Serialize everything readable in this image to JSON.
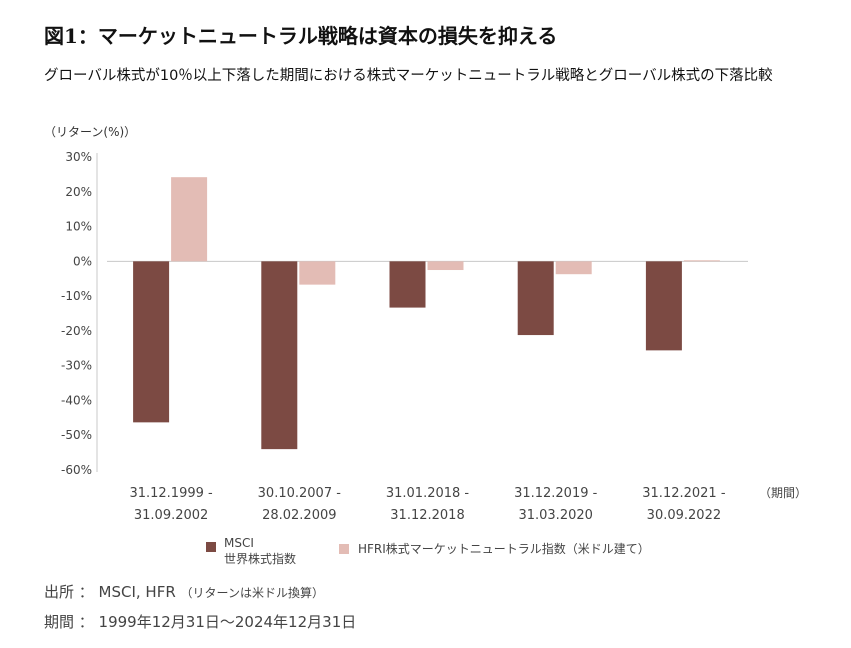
{
  "title": "図1：マーケットニュートラル戦略は資本の損失を抑える",
  "subtitle": "グローバル株式が10％以上下落した期間における株式マーケットニュートラル戦略とグローバル株式の下落比較",
  "colors": {
    "msci": "#7c4a43",
    "hfri": "#e3bcb5",
    "axis": "#c8c8c8",
    "text": "#444444"
  },
  "footer": {
    "source": "出所 ： MSCI, HFR",
    "source_note": "（リターンは米ドル換算）",
    "period": "期間 ： 1999年12月31日～2024年12月31日"
  },
  "chart_data": {
    "type": "bar",
    "ylabel": "（リターン(%)）",
    "xlabel": "（期間）",
    "ylim": [
      -60,
      30
    ],
    "yticks": [
      30,
      20,
      10,
      0,
      -10,
      -20,
      -30,
      -40,
      -50,
      -60
    ],
    "ytick_labels": [
      "30%",
      "20%",
      "10%",
      "0%",
      "-10%",
      "-20%",
      "-30%",
      "-40%",
      "-50%",
      "-60%"
    ],
    "categories": [
      [
        "31.12.1999 -",
        "31.09.2002"
      ],
      [
        "30.10.2007 -",
        "28.02.2009"
      ],
      [
        "31.01.2018 -",
        "31.12.2018"
      ],
      [
        "31.12.2019 -",
        "31.03.2020"
      ],
      [
        "31.12.2021 -",
        "30.09.2022"
      ]
    ],
    "series": [
      {
        "name": "MSCI 世界株式指数",
        "legend_lines": [
          "MSCI",
          "世界株式指数"
        ],
        "color": "#7c4a43",
        "values": [
          -46.3,
          -54.0,
          -13.3,
          -21.2,
          -25.6
        ]
      },
      {
        "name": "HFRI株式マーケットニュートラル指数（米ドル建て）",
        "legend_lines": [
          "HFRI株式マーケットニュートラル指数（米ドル建て）"
        ],
        "color": "#e3bcb5",
        "values": [
          24.2,
          -6.7,
          -2.5,
          -3.7,
          0.3
        ]
      }
    ],
    "grid": false,
    "legend_position": "bottom"
  }
}
